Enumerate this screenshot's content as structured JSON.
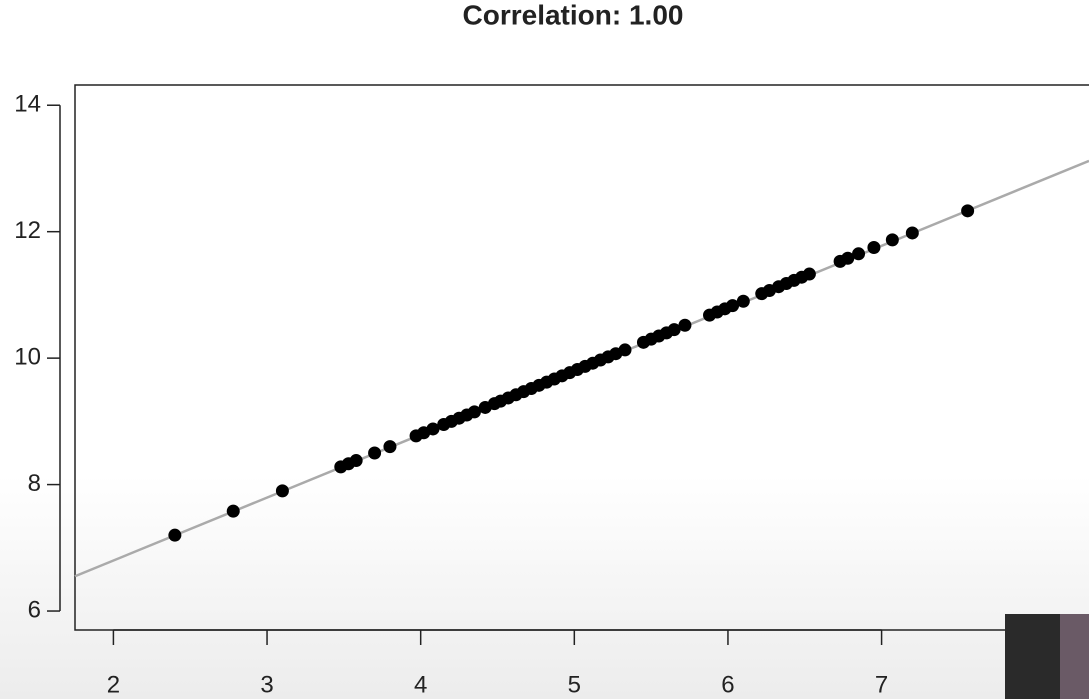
{
  "chart_data": {
    "type": "scatter",
    "title": "Correlation: 1.00",
    "x": [
      2.4,
      2.78,
      3.1,
      3.48,
      3.53,
      3.58,
      3.7,
      3.8,
      3.97,
      4.02,
      4.08,
      4.15,
      4.2,
      4.25,
      4.3,
      4.35,
      4.42,
      4.48,
      4.52,
      4.57,
      4.62,
      4.67,
      4.72,
      4.77,
      4.82,
      4.87,
      4.92,
      4.97,
      5.02,
      5.07,
      5.12,
      5.17,
      5.22,
      5.27,
      5.33,
      5.45,
      5.5,
      5.55,
      5.6,
      5.65,
      5.72,
      5.88,
      5.93,
      5.98,
      6.03,
      6.1,
      6.22,
      6.27,
      6.33,
      6.38,
      6.43,
      6.48,
      6.53,
      6.73,
      6.78,
      6.85,
      6.95,
      7.07,
      7.2,
      7.56
    ],
    "y": [
      7.2,
      7.58,
      7.9,
      8.28,
      8.33,
      8.38,
      8.5,
      8.6,
      8.77,
      8.82,
      8.88,
      8.95,
      9.0,
      9.05,
      9.1,
      9.15,
      9.22,
      9.28,
      9.32,
      9.37,
      9.42,
      9.47,
      9.52,
      9.57,
      9.62,
      9.67,
      9.72,
      9.77,
      9.82,
      9.87,
      9.92,
      9.97,
      10.02,
      10.07,
      10.13,
      10.25,
      10.3,
      10.35,
      10.4,
      10.45,
      10.52,
      10.68,
      10.73,
      10.78,
      10.83,
      10.9,
      11.02,
      11.07,
      11.13,
      11.18,
      11.23,
      11.28,
      11.33,
      11.53,
      11.58,
      11.65,
      11.75,
      11.87,
      11.98,
      12.33
    ],
    "color": "#000000",
    "trendline": {
      "x": [
        1.75,
        8.35
      ],
      "y": [
        6.55,
        13.12
      ],
      "color": "#aaaaaa"
    },
    "xlim": [
      1.75,
      8.35
    ],
    "ylim": [
      5.7,
      14.32
    ],
    "xticks": [
      2,
      3,
      4,
      5,
      6,
      7
    ],
    "yticks": [
      6,
      8,
      10,
      12,
      14
    ]
  }
}
